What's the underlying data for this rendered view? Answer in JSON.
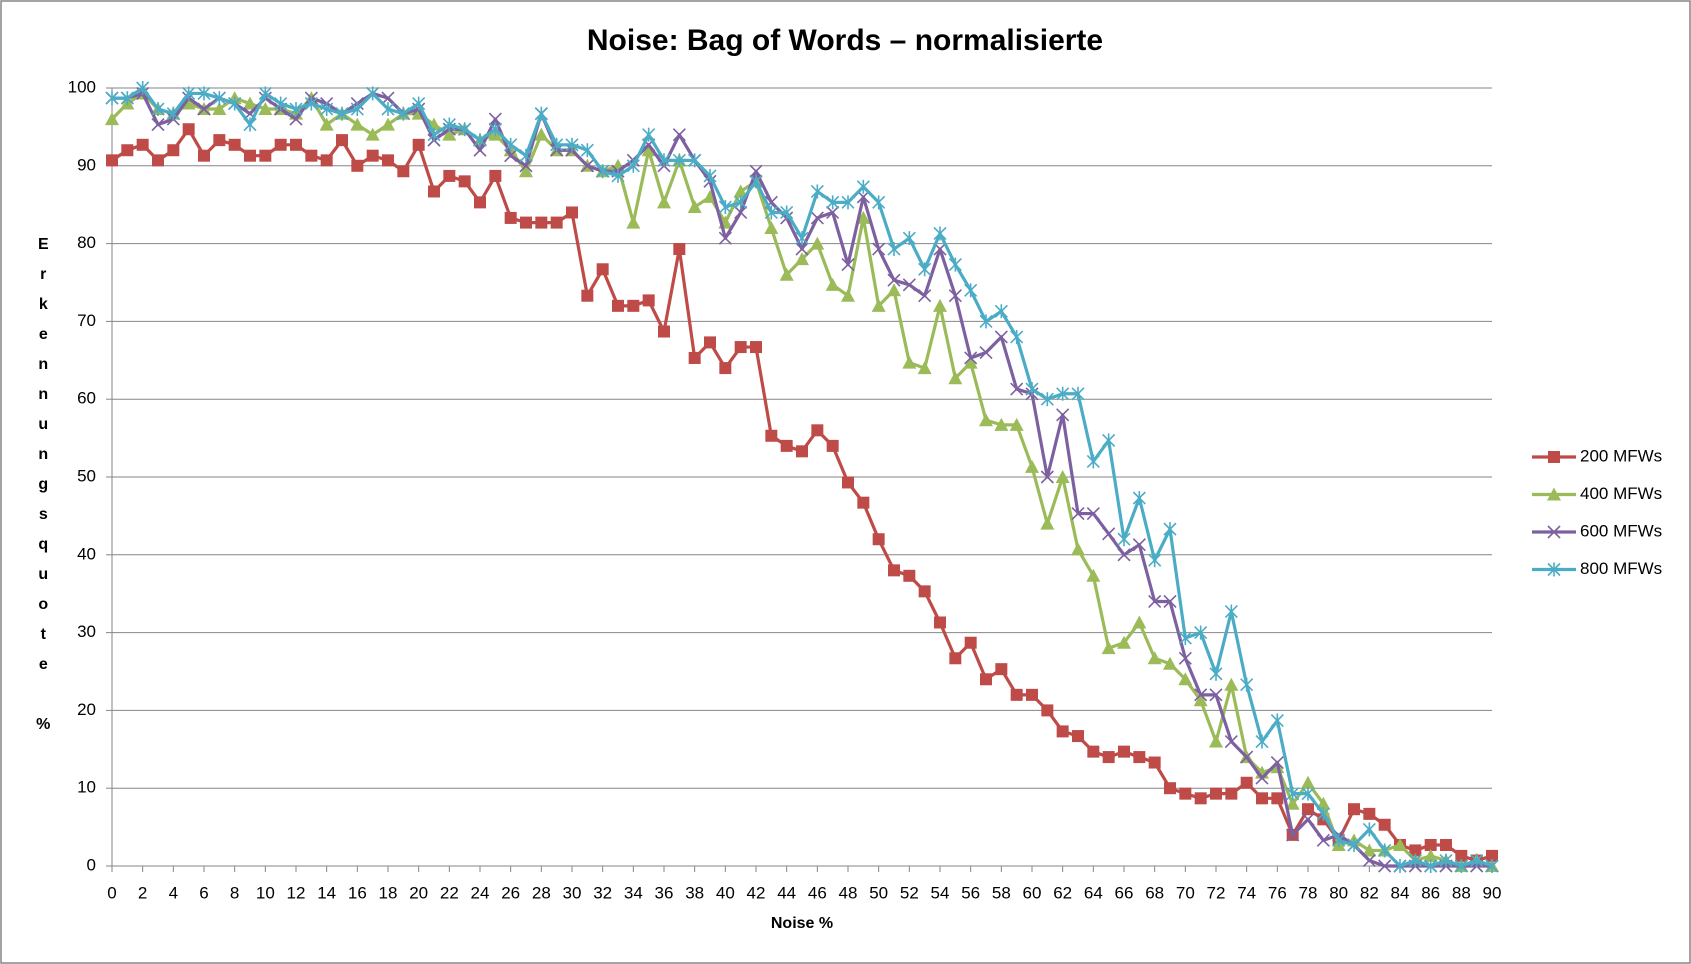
{
  "chart_data": {
    "type": "line",
    "title": "Noise: Bag of Words – normalisierte",
    "x_label": "Noise %",
    "y_label": "Erkennungsquote %",
    "x": [
      0,
      1,
      2,
      3,
      4,
      5,
      6,
      7,
      8,
      9,
      10,
      11,
      12,
      13,
      14,
      15,
      16,
      17,
      18,
      19,
      20,
      21,
      22,
      23,
      24,
      25,
      26,
      27,
      28,
      29,
      30,
      31,
      32,
      33,
      34,
      35,
      36,
      37,
      38,
      39,
      40,
      41,
      42,
      43,
      44,
      45,
      46,
      47,
      48,
      49,
      50,
      51,
      52,
      53,
      54,
      55,
      56,
      57,
      58,
      59,
      60,
      61,
      62,
      63,
      64,
      65,
      66,
      67,
      68,
      69,
      70,
      71,
      72,
      73,
      74,
      75,
      76,
      77,
      78,
      79,
      80,
      81,
      82,
      83,
      84,
      85,
      86,
      87,
      88,
      89,
      90
    ],
    "xlim": [
      0,
      90
    ],
    "xticks": [
      0,
      2,
      4,
      6,
      8,
      10,
      12,
      14,
      16,
      18,
      20,
      22,
      24,
      26,
      28,
      30,
      32,
      34,
      36,
      38,
      40,
      42,
      44,
      46,
      48,
      50,
      52,
      54,
      56,
      58,
      60,
      62,
      64,
      66,
      68,
      70,
      72,
      74,
      76,
      78,
      80,
      82,
      84,
      86,
      88,
      90
    ],
    "ylim": [
      0,
      100
    ],
    "yticks": [
      0,
      10,
      20,
      30,
      40,
      50,
      60,
      70,
      80,
      90,
      100
    ],
    "grid": true,
    "legend": "right",
    "series": [
      {
        "name": "200 MFWs",
        "color": "#be4b48",
        "marker": "square",
        "values": [
          90.7,
          92,
          92.7,
          90.7,
          92,
          94.7,
          91.3,
          93.3,
          92.7,
          91.3,
          91.3,
          92.7,
          92.7,
          91.3,
          90.7,
          93.3,
          90,
          91.3,
          90.7,
          89.3,
          92.7,
          86.7,
          88.7,
          88,
          85.3,
          88.7,
          83.3,
          82.7,
          82.7,
          82.7,
          84,
          73.3,
          76.7,
          72,
          72,
          72.7,
          68.7,
          79.3,
          65.3,
          67.3,
          64,
          66.7,
          66.7,
          55.3,
          54,
          53.3,
          56,
          54,
          49.3,
          46.7,
          42,
          38,
          37.3,
          35.3,
          31.3,
          26.7,
          28.7,
          24,
          25.3,
          22,
          22,
          20,
          17.3,
          16.7,
          14.7,
          14,
          14.7,
          14,
          13.3,
          10,
          9.3,
          8.7,
          9.3,
          9.3,
          10.7,
          8.7,
          8.7,
          4,
          7.3,
          6,
          3.3,
          7.3,
          6.7,
          5.3,
          2.7,
          2,
          2.7,
          2.7,
          1.3,
          0.7,
          1.3
        ]
      },
      {
        "name": "400 MFWs",
        "color": "#9bbb59",
        "marker": "triangle",
        "values": [
          96,
          98,
          99.3,
          97.3,
          96.7,
          98,
          97.3,
          97.3,
          98.7,
          98,
          97.3,
          97.3,
          96.7,
          98.7,
          95.3,
          96.7,
          95.3,
          94,
          95.3,
          96.7,
          96.7,
          95.3,
          94,
          94.7,
          93.3,
          94,
          92,
          89.3,
          94,
          92,
          92,
          90,
          89.3,
          90,
          82.7,
          92,
          85.3,
          90.7,
          84.7,
          86,
          82.7,
          86.7,
          88,
          82,
          76,
          78,
          80,
          74.7,
          73.3,
          83.3,
          72,
          74,
          64.7,
          64,
          72,
          62.7,
          64.7,
          57.3,
          56.7,
          56.7,
          51.3,
          44,
          50,
          40.7,
          37.3,
          28,
          28.7,
          31.3,
          26.7,
          26,
          24,
          21.3,
          16,
          23.3,
          14,
          12,
          12.7,
          8,
          10.7,
          8,
          2.7,
          3.3,
          2,
          2,
          2.7,
          0.7,
          1.3,
          0.7,
          0,
          0.7,
          0
        ]
      },
      {
        "name": "600 MFWs",
        "color": "#7d60a0",
        "marker": "x",
        "values": [
          98.7,
          98.7,
          99.3,
          95.3,
          96,
          98.7,
          97.3,
          98.7,
          98,
          96.7,
          98.7,
          97.3,
          96,
          98.7,
          98,
          96.7,
          98,
          99.3,
          98.7,
          96.7,
          97.3,
          93.3,
          94.7,
          94.7,
          92,
          96,
          91.3,
          90,
          96.7,
          92,
          92,
          90,
          89.3,
          89.3,
          90.7,
          92.7,
          90,
          94,
          90.7,
          88,
          80.7,
          84,
          89.3,
          85.3,
          83.3,
          79.3,
          83.3,
          84,
          77.3,
          86,
          79.3,
          75.3,
          74.7,
          73.3,
          79.3,
          73.3,
          65.3,
          66,
          68,
          61.3,
          60.7,
          50,
          58,
          45.3,
          45.3,
          42.7,
          40,
          41.3,
          34,
          34,
          26.7,
          22,
          22,
          16,
          14,
          11.3,
          13.3,
          4,
          6,
          3.3,
          4,
          2.7,
          0.7,
          0,
          0,
          0,
          0,
          0,
          0,
          0,
          0
        ]
      },
      {
        "name": "800 MFWs",
        "color": "#4bacc6",
        "marker": "star",
        "values": [
          98.7,
          98.7,
          100,
          97.3,
          96.7,
          99.3,
          99.3,
          98.7,
          98,
          95.3,
          99.3,
          98,
          97.3,
          98,
          97.3,
          96.7,
          97.3,
          99.3,
          97.3,
          96.7,
          98,
          94,
          95.3,
          94.7,
          93.3,
          94.7,
          92.7,
          91.3,
          96.7,
          92.7,
          92.7,
          92,
          89.3,
          88.7,
          90,
          94,
          90.7,
          90.7,
          90.7,
          88.7,
          84.7,
          85.3,
          88,
          84,
          84,
          80.7,
          86.7,
          85.3,
          85.3,
          87.3,
          85.3,
          79.3,
          80.7,
          76.7,
          81.3,
          77.3,
          74,
          70,
          71.3,
          68,
          61.3,
          60,
          60.7,
          60.7,
          52,
          54.7,
          42,
          47.3,
          39.3,
          43.3,
          29.3,
          30,
          24.7,
          32.7,
          23.3,
          16,
          18.7,
          9.3,
          9.3,
          6.7,
          3.3,
          2.7,
          4.7,
          2,
          0,
          0.7,
          0,
          0.7,
          0,
          0.7,
          0
        ]
      }
    ]
  }
}
